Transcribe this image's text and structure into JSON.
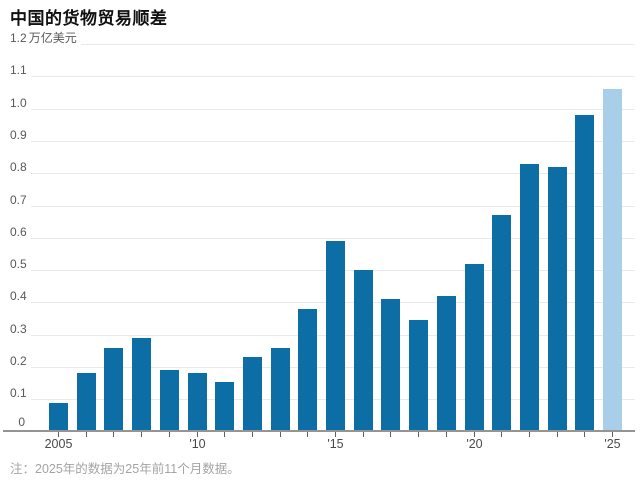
{
  "chart_data": {
    "type": "bar",
    "title": "中国的货物贸易顺差",
    "unit_label": "万亿美元",
    "note": "注：2025年的数据为25年前11个月数据。",
    "years": [
      2005,
      2006,
      2007,
      2008,
      2009,
      2010,
      2011,
      2012,
      2013,
      2014,
      2015,
      2016,
      2017,
      2018,
      2019,
      2020,
      2021,
      2022,
      2023,
      2024,
      2025
    ],
    "values": [
      0.09,
      0.18,
      0.26,
      0.29,
      0.19,
      0.18,
      0.155,
      0.23,
      0.26,
      0.38,
      0.59,
      0.5,
      0.41,
      0.345,
      0.42,
      0.52,
      0.67,
      0.83,
      0.82,
      0.98,
      1.06
    ],
    "highlight_year": 2025,
    "ylim": [
      0,
      1.2
    ],
    "ytick_step": 0.1,
    "ytick_labels": [
      "0",
      "0.1",
      "0.2",
      "0.3",
      "0.4",
      "0.5",
      "0.6",
      "0.7",
      "0.8",
      "0.9",
      "1.0",
      "1.1",
      "1.2"
    ],
    "xtick_labels": [
      {
        "index": 0,
        "label": "2005"
      },
      {
        "index": 5,
        "label": "'10"
      },
      {
        "index": 10,
        "label": "'15"
      },
      {
        "index": 15,
        "label": "'20"
      },
      {
        "index": 20,
        "label": "'25"
      }
    ],
    "grid": true,
    "legend": false,
    "colors": {
      "bar": "#0d6ea6",
      "highlight_bar": "#a8cee9",
      "gridline": "#e9e9e9",
      "axis_line": "#949494",
      "tick": "#606060",
      "title": "#111111",
      "y_label": "#585858",
      "x_label": "#4a4a4a",
      "note": "#a4a4a4"
    }
  }
}
